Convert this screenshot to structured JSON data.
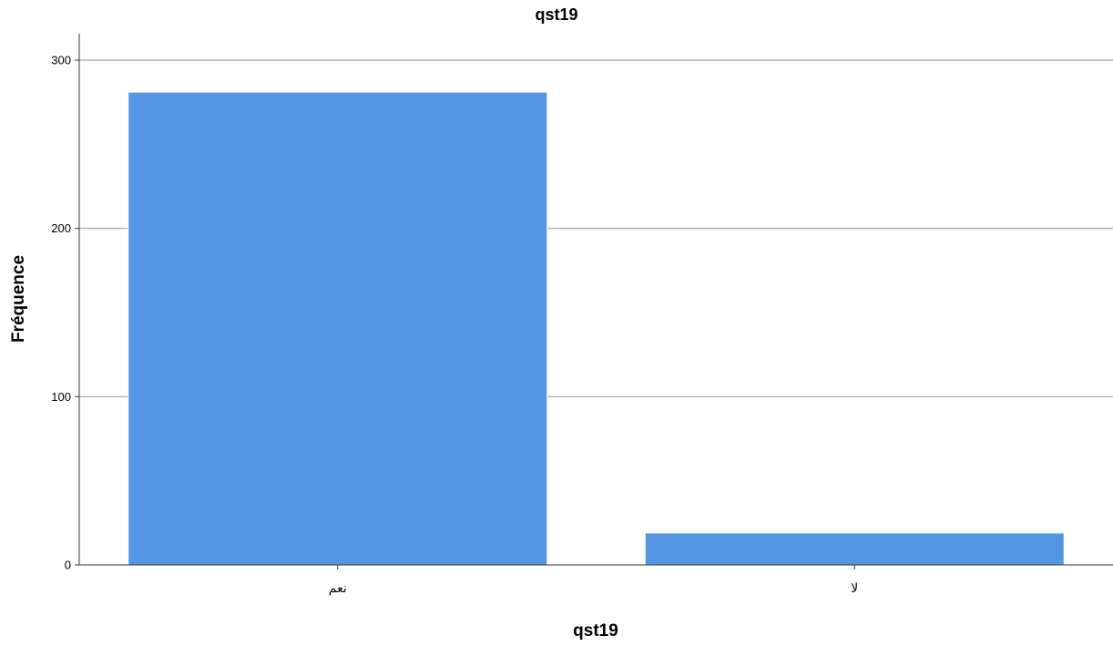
{
  "chart_data": {
    "type": "bar",
    "title": "qst19",
    "xlabel": "qst19",
    "ylabel": "Fréquence",
    "categories": [
      "نعم",
      "لا"
    ],
    "values": [
      281,
      19
    ],
    "ylim": [
      0,
      300
    ],
    "yticks": [
      0,
      100,
      200,
      300
    ],
    "grid": true,
    "bar_color": "#5596e4",
    "bar_edge_color": "#ffffff",
    "gridline_color": "#b4b4b4",
    "axis_color": "#333333"
  }
}
